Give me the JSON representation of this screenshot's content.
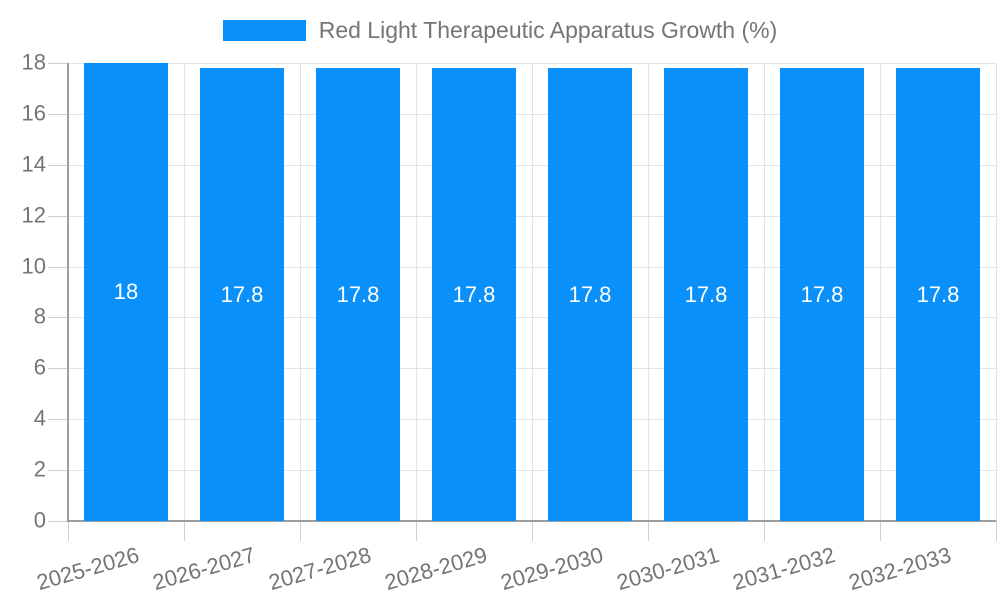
{
  "legend": {
    "label": "Red Light Therapeutic Apparatus Growth (%)"
  },
  "chart_data": {
    "type": "bar",
    "title": "Red Light Therapeutic Apparatus Growth (%)",
    "xlabel": "",
    "ylabel": "",
    "categories": [
      "2025-2026",
      "2026-2027",
      "2027-2028",
      "2028-2029",
      "2029-2030",
      "2030-2031",
      "2031-2032",
      "2032-2033"
    ],
    "series": [
      {
        "name": "Red Light Therapeutic Apparatus Growth (%)",
        "values": [
          18,
          17.8,
          17.8,
          17.8,
          17.8,
          17.8,
          17.8,
          17.8
        ]
      }
    ],
    "value_labels": [
      "18",
      "17.8",
      "17.8",
      "17.8",
      "17.8",
      "17.8",
      "17.8",
      "17.8"
    ],
    "ylim": [
      0,
      18
    ],
    "yticks": [
      0,
      2,
      4,
      6,
      8,
      10,
      12,
      14,
      16,
      18
    ],
    "grid": true,
    "legend_position": "top-center",
    "colors": {
      "bar": "#0990fa",
      "grid": "#e4e4e4",
      "tick_mark": "#cfcfcf",
      "axis": "#9e9e9e",
      "text": "#757575",
      "value_label": "#ffffff"
    }
  }
}
